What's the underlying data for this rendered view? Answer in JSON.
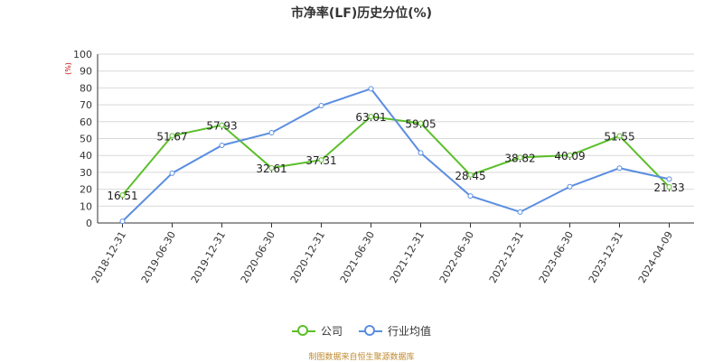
{
  "chart_data": {
    "type": "line",
    "title": "市净率(LF)历史分位(%)",
    "ylabel": "(%)",
    "xlabel": "",
    "ylim": [
      0,
      100
    ],
    "yticks": [
      0,
      10,
      20,
      30,
      40,
      50,
      60,
      70,
      80,
      90,
      100
    ],
    "categories": [
      "2018-12-31",
      "2019-06-30",
      "2019-12-31",
      "2020-06-30",
      "2020-12-31",
      "2021-06-30",
      "2021-12-31",
      "2022-06-30",
      "2022-12-31",
      "2023-06-30",
      "2023-12-31",
      "2024-04-09"
    ],
    "grid": true,
    "legend_position": "bottom",
    "series": [
      {
        "name": "公司",
        "color": "#5bbf2a",
        "values": [
          16.51,
          51.67,
          57.93,
          32.61,
          37.31,
          63.01,
          59.05,
          28.45,
          38.82,
          40.09,
          51.55,
          21.33
        ],
        "data_labels": [
          "16.51",
          "51.67",
          "57.93",
          "32.61",
          "37.31",
          "63.01",
          "59.05",
          "28.45",
          "38.82",
          "40.09",
          "51.55",
          "21.33"
        ]
      },
      {
        "name": "行业均值",
        "color": "#5b8ee0",
        "values": [
          1.0,
          29.5,
          46.0,
          53.5,
          69.5,
          79.5,
          41.5,
          16.0,
          6.5,
          21.5,
          32.5,
          26.0
        ]
      }
    ]
  },
  "source": "制图数据来自恒生聚源数据库"
}
